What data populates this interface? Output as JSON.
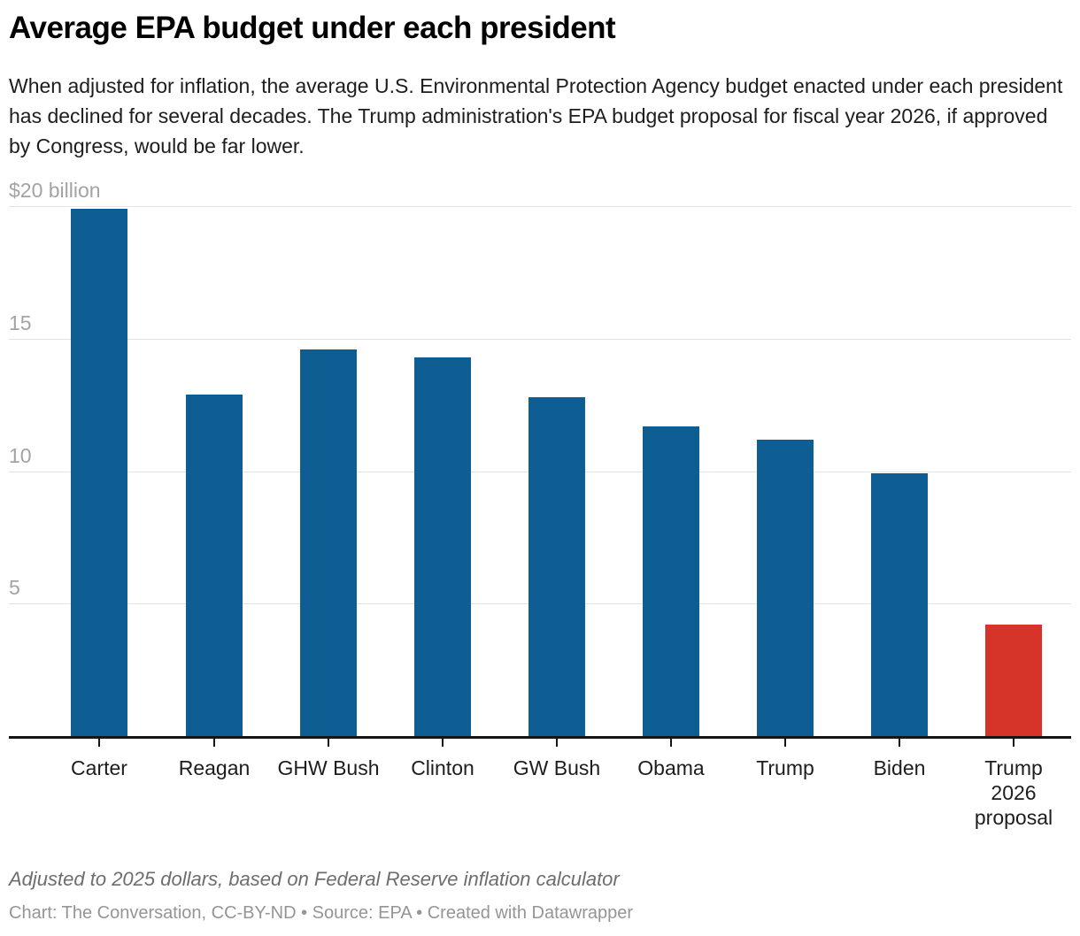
{
  "chart_data": {
    "type": "bar",
    "title": "Average EPA budget under each president",
    "subtitle": "When adjusted for inflation, the average U.S. Environmental Protection Agency budget enacted under each president has declined for several decades. The Trump administration's EPA budget proposal for fiscal year 2026, if approved by Congress, would be far lower.",
    "categories": [
      "Carter",
      "Reagan",
      "GHW Bush",
      "Clinton",
      "GW Bush",
      "Obama",
      "Trump",
      "Biden",
      "Trump 2026 proposal"
    ],
    "values": [
      19.9,
      12.9,
      14.6,
      14.3,
      12.8,
      11.7,
      11.2,
      9.9,
      4.2
    ],
    "units": "billions of dollars",
    "xlabel": "",
    "ylabel": "",
    "ylim": [
      0,
      20
    ],
    "yticks": [
      5,
      10,
      15,
      20
    ],
    "ytick_labels": [
      "5",
      "10",
      "15",
      "$20 billion"
    ],
    "grid": true,
    "legend": false,
    "bar_colors": [
      "#0E5E94",
      "#0E5E94",
      "#0E5E94",
      "#0E5E94",
      "#0E5E94",
      "#0E5E94",
      "#0E5E94",
      "#0E5E94",
      "#D63429"
    ],
    "highlight_category": "Trump 2026 proposal",
    "colors": {
      "default_bar": "#0E5E94",
      "highlight_bar": "#D63429",
      "gridline": "#E2E2E2",
      "axis": "#151515",
      "axis_label": "#A3A3A3"
    }
  },
  "footer": {
    "note": "Adjusted to 2025 dollars, based on Federal Reserve inflation calculator",
    "byline": "Chart: The Conversation, CC-BY-ND • Source: EPA • Created with Datawrapper"
  }
}
